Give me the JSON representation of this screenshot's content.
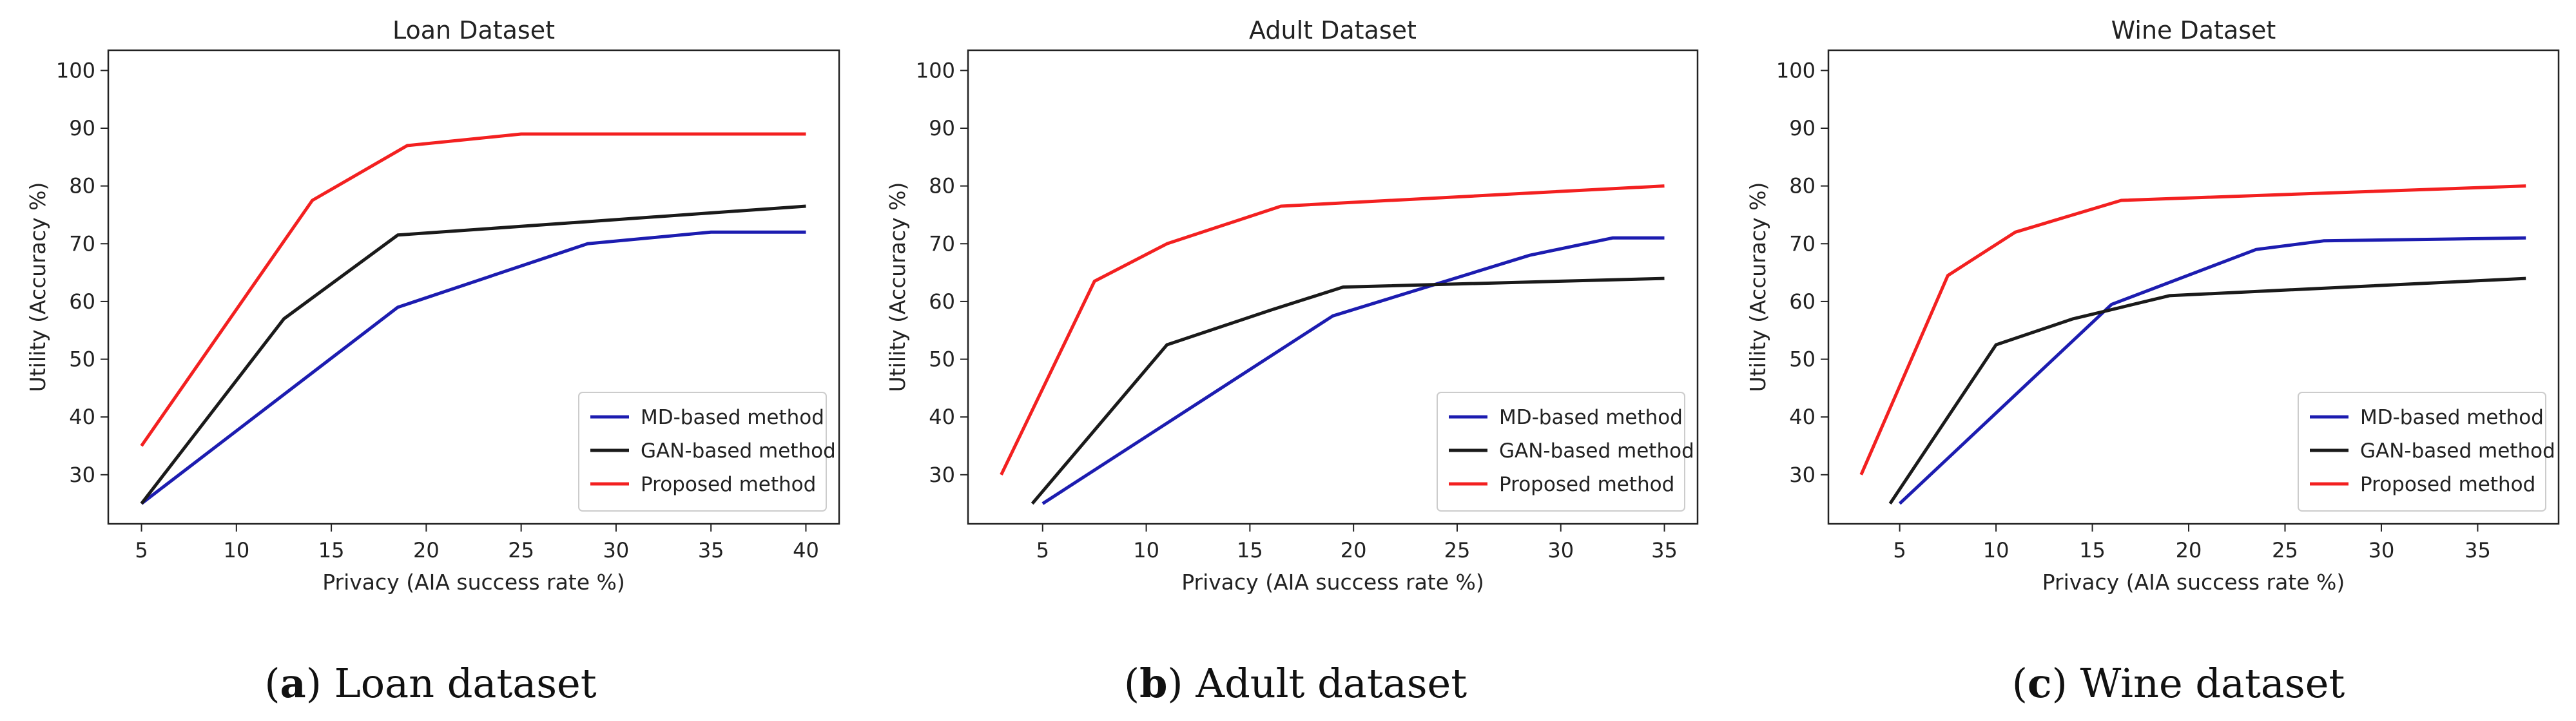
{
  "colors": {
    "md": "#1c1cb0",
    "gan": "#1a1a1a",
    "proposed": "#f32020",
    "axis": "#222222"
  },
  "chart_data": [
    {
      "type": "line",
      "title": "Loan Dataset",
      "xlabel": "Privacy (AIA success rate %)",
      "ylabel": "Utility (Accuracy %)",
      "xlim": [
        3.25,
        41.75
      ],
      "ylim": [
        21.5,
        103.5
      ],
      "xticks": [
        5,
        10,
        15,
        20,
        25,
        30,
        35,
        40
      ],
      "yticks": [
        30,
        40,
        50,
        60,
        70,
        80,
        90,
        100
      ],
      "legend": "lower-right",
      "series": [
        {
          "key": "md",
          "name": "MD-based method",
          "x": [
            5,
            18.5,
            28.5,
            35,
            40
          ],
          "y": [
            25,
            59,
            70,
            72,
            72
          ]
        },
        {
          "key": "gan",
          "name": "GAN-based method",
          "x": [
            5,
            12.5,
            18.5,
            40
          ],
          "y": [
            25,
            57,
            71.5,
            76.5
          ]
        },
        {
          "key": "proposed",
          "name": "Proposed method",
          "x": [
            5,
            14,
            19,
            25,
            30,
            40
          ],
          "y": [
            35,
            77.5,
            87,
            89,
            89,
            89
          ]
        }
      ],
      "caption": {
        "letter": "a",
        "text": "Loan dataset"
      }
    },
    {
      "type": "line",
      "title": "Adult Dataset",
      "xlabel": "Privacy (AIA success rate %)",
      "ylabel": "Utility (Accuracy %)",
      "xlim": [
        1.4,
        36.6
      ],
      "ylim": [
        21.5,
        103.5
      ],
      "xticks": [
        5,
        10,
        15,
        20,
        25,
        30,
        35
      ],
      "yticks": [
        30,
        40,
        50,
        60,
        70,
        80,
        90,
        100
      ],
      "legend": "lower-right",
      "series": [
        {
          "key": "md",
          "name": "MD-based method",
          "x": [
            5,
            19,
            28.5,
            32.5,
            35
          ],
          "y": [
            25,
            57.5,
            68,
            71,
            71
          ]
        },
        {
          "key": "gan",
          "name": "GAN-based method",
          "x": [
            4.5,
            11,
            16,
            19.5,
            35
          ],
          "y": [
            25,
            52.5,
            58.5,
            62.5,
            64
          ]
        },
        {
          "key": "proposed",
          "name": "Proposed method",
          "x": [
            3,
            7.5,
            11,
            16.5,
            35
          ],
          "y": [
            30,
            63.5,
            70,
            76.5,
            80
          ]
        }
      ],
      "caption": {
        "letter": "b",
        "text": "Adult dataset"
      }
    },
    {
      "type": "line",
      "title": "Wine Dataset",
      "xlabel": "Privacy (AIA success rate %)",
      "ylabel": "Utility (Accuracy %)",
      "xlim": [
        1.3,
        39.2
      ],
      "ylim": [
        21.5,
        103.5
      ],
      "xticks": [
        5,
        10,
        15,
        20,
        25,
        30,
        35
      ],
      "yticks": [
        30,
        40,
        50,
        60,
        70,
        80,
        90,
        100
      ],
      "legend": "lower-right",
      "series": [
        {
          "key": "md",
          "name": "MD-based method",
          "x": [
            5,
            16,
            23.5,
            27,
            37.5
          ],
          "y": [
            25,
            59.5,
            69,
            70.5,
            71
          ]
        },
        {
          "key": "gan",
          "name": "GAN-based method",
          "x": [
            4.5,
            10,
            14,
            16.5,
            19,
            37.5
          ],
          "y": [
            25,
            52.5,
            57,
            59,
            61,
            64
          ]
        },
        {
          "key": "proposed",
          "name": "Proposed method",
          "x": [
            3,
            7.5,
            11,
            16.5,
            37.5
          ],
          "y": [
            30,
            64.5,
            72,
            77.5,
            80
          ]
        }
      ],
      "caption": {
        "letter": "c",
        "text": "Wine dataset"
      }
    }
  ]
}
